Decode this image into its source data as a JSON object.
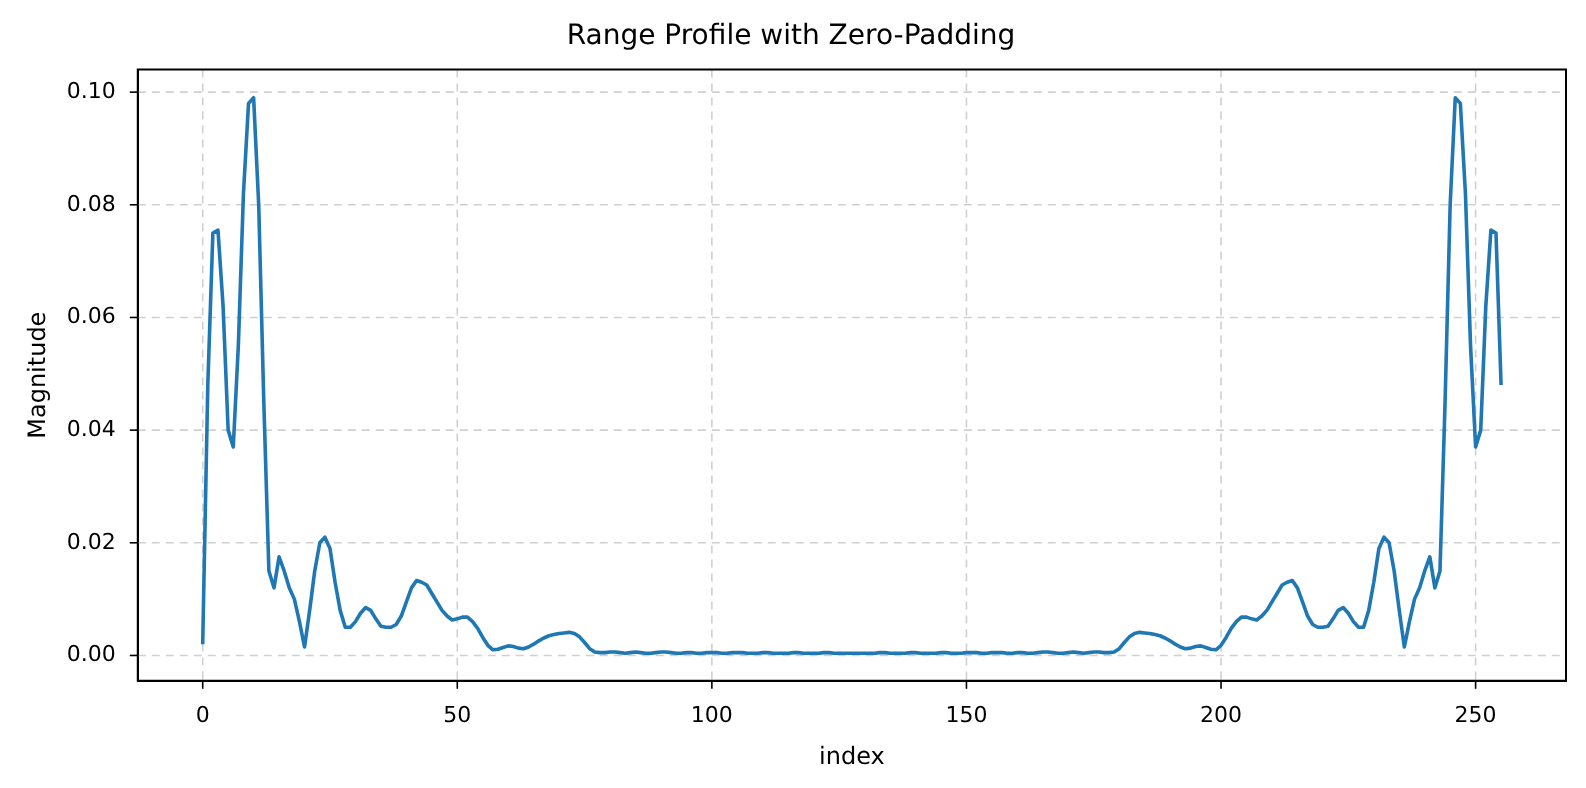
{
  "chart_data": {
    "type": "line",
    "title": "Range Profile with Zero-Padding",
    "xlabel": "index",
    "ylabel": "Magnitude",
    "x": [
      0,
      1,
      2,
      3,
      4,
      5,
      6,
      7,
      8,
      9,
      10,
      11,
      12,
      13,
      14,
      15,
      16,
      17,
      18,
      19,
      20,
      21,
      22,
      23,
      24,
      25,
      26,
      27,
      28,
      29,
      30,
      31,
      32,
      33,
      34,
      35,
      36,
      37,
      38,
      39,
      40,
      41,
      42,
      43,
      44,
      45,
      46,
      47,
      48,
      49,
      50,
      51,
      52,
      53,
      54,
      55,
      56,
      57,
      58,
      59,
      60,
      61,
      62,
      63,
      64,
      65,
      66,
      67,
      68,
      69,
      70,
      71,
      72,
      73,
      74,
      75,
      76,
      77,
      78,
      79,
      80,
      81,
      82,
      83,
      84,
      85,
      86,
      87,
      88,
      89,
      90,
      91,
      92,
      93,
      94,
      95,
      96,
      97,
      98,
      99,
      100,
      101,
      102,
      103,
      104,
      105,
      106,
      107,
      108,
      109,
      110,
      111,
      112,
      113,
      114,
      115,
      116,
      117,
      118,
      119,
      120,
      121,
      122,
      123,
      124,
      125,
      126,
      127,
      128,
      129,
      130,
      131,
      132,
      133,
      134,
      135,
      136,
      137,
      138,
      139,
      140,
      141,
      142,
      143,
      144,
      145,
      146,
      147,
      148,
      149,
      150,
      151,
      152,
      153,
      154,
      155,
      156,
      157,
      158,
      159,
      160,
      161,
      162,
      163,
      164,
      165,
      166,
      167,
      168,
      169,
      170,
      171,
      172,
      173,
      174,
      175,
      176,
      177,
      178,
      179,
      180,
      181,
      182,
      183,
      184,
      185,
      186,
      187,
      188,
      189,
      190,
      191,
      192,
      193,
      194,
      195,
      196,
      197,
      198,
      199,
      200,
      201,
      202,
      203,
      204,
      205,
      206,
      207,
      208,
      209,
      210,
      211,
      212,
      213,
      214,
      215,
      216,
      217,
      218,
      219,
      220,
      221,
      222,
      223,
      224,
      225,
      226,
      227,
      228,
      229,
      230,
      231,
      232,
      233,
      234,
      235,
      236,
      237,
      238,
      239,
      240,
      241,
      242,
      243,
      244,
      245,
      246,
      247,
      248,
      249,
      250,
      251,
      252,
      253,
      254,
      255
    ],
    "series": [
      {
        "color": "#1f77b4",
        "values": [
          0.002,
          0.048,
          0.075,
          0.0755,
          0.062,
          0.04,
          0.037,
          0.055,
          0.082,
          0.098,
          0.099,
          0.08,
          0.045,
          0.015,
          0.012,
          0.0175,
          0.015,
          0.012,
          0.01,
          0.006,
          0.0015,
          0.008,
          0.015,
          0.02,
          0.021,
          0.019,
          0.013,
          0.008,
          0.005,
          0.005,
          0.006,
          0.0075,
          0.0085,
          0.008,
          0.0065,
          0.0052,
          0.005,
          0.005,
          0.0055,
          0.007,
          0.0095,
          0.012,
          0.0133,
          0.013,
          0.0125,
          0.011,
          0.0095,
          0.008,
          0.007,
          0.0063,
          0.0065,
          0.0068,
          0.0068,
          0.006,
          0.0048,
          0.0032,
          0.0018,
          0.001,
          0.0011,
          0.0014,
          0.0017,
          0.0016,
          0.0013,
          0.0012,
          0.0015,
          0.002,
          0.0026,
          0.0031,
          0.0035,
          0.0037,
          0.0039,
          0.004,
          0.0041,
          0.0039,
          0.0033,
          0.0023,
          0.0012,
          0.0006,
          0.0005,
          0.0005,
          0.0006,
          0.0006,
          0.0005,
          0.0004,
          0.0005,
          0.0006,
          0.0005,
          0.0004,
          0.0004,
          0.0005,
          0.0006,
          0.0006,
          0.0005,
          0.0004,
          0.0004,
          0.0005,
          0.0005,
          0.0004,
          0.0004,
          0.0005,
          0.0005,
          0.0005,
          0.0004,
          0.0004,
          0.0005,
          0.0005,
          0.0005,
          0.0004,
          0.0004,
          0.0004,
          0.0005,
          0.0005,
          0.0004,
          0.0004,
          0.0004,
          0.0004,
          0.0005,
          0.0005,
          0.0004,
          0.0004,
          0.0004,
          0.0004,
          0.0005,
          0.0005,
          0.0004,
          0.0004,
          0.0004,
          0.0004,
          0.0004,
          0.0004,
          0.0004,
          0.0004,
          0.0004,
          0.0005,
          0.0005,
          0.0004,
          0.0004,
          0.0004,
          0.0004,
          0.0005,
          0.0005,
          0.0004,
          0.0004,
          0.0004,
          0.0004,
          0.0005,
          0.0005,
          0.0004,
          0.0004,
          0.0004,
          0.0005,
          0.0005,
          0.0005,
          0.0004,
          0.0004,
          0.0005,
          0.0005,
          0.0005,
          0.0004,
          0.0004,
          0.0005,
          0.0005,
          0.0004,
          0.0004,
          0.0005,
          0.0006,
          0.0006,
          0.0005,
          0.0004,
          0.0004,
          0.0005,
          0.0006,
          0.0005,
          0.0004,
          0.0005,
          0.0006,
          0.0006,
          0.0005,
          0.0005,
          0.0006,
          0.0012,
          0.0023,
          0.0033,
          0.0039,
          0.0041,
          0.004,
          0.0039,
          0.0037,
          0.0035,
          0.0031,
          0.0026,
          0.002,
          0.0015,
          0.0012,
          0.0013,
          0.0016,
          0.0017,
          0.0014,
          0.0011,
          0.001,
          0.0018,
          0.0032,
          0.0048,
          0.006,
          0.0068,
          0.0068,
          0.0065,
          0.0063,
          0.007,
          0.008,
          0.0095,
          0.011,
          0.0125,
          0.013,
          0.0133,
          0.012,
          0.0095,
          0.007,
          0.0055,
          0.005,
          0.005,
          0.0052,
          0.0065,
          0.008,
          0.0085,
          0.0075,
          0.006,
          0.005,
          0.005,
          0.008,
          0.013,
          0.019,
          0.021,
          0.02,
          0.015,
          0.008,
          0.0015,
          0.006,
          0.01,
          0.012,
          0.015,
          0.0175,
          0.012,
          0.015,
          0.045,
          0.08,
          0.099,
          0.098,
          0.082,
          0.055,
          0.037,
          0.04,
          0.062,
          0.0755,
          0.075,
          0.048
        ]
      }
    ],
    "xlim": [
      -12.75,
      267.75
    ],
    "xticks": [
      0,
      50,
      100,
      150,
      200,
      250
    ],
    "ylim": [
      -0.0045,
      0.104
    ],
    "yticks": [
      {
        "value": 0,
        "label": "0.00"
      },
      {
        "value": 0.02,
        "label": "0.02"
      },
      {
        "value": 0.04,
        "label": "0.04"
      },
      {
        "value": 0.06,
        "label": "0.06"
      },
      {
        "value": 0.08,
        "label": "0.08"
      },
      {
        "value": 0.1,
        "label": "0.10"
      }
    ],
    "grid": true,
    "line_style": "solid",
    "marker": "none"
  }
}
